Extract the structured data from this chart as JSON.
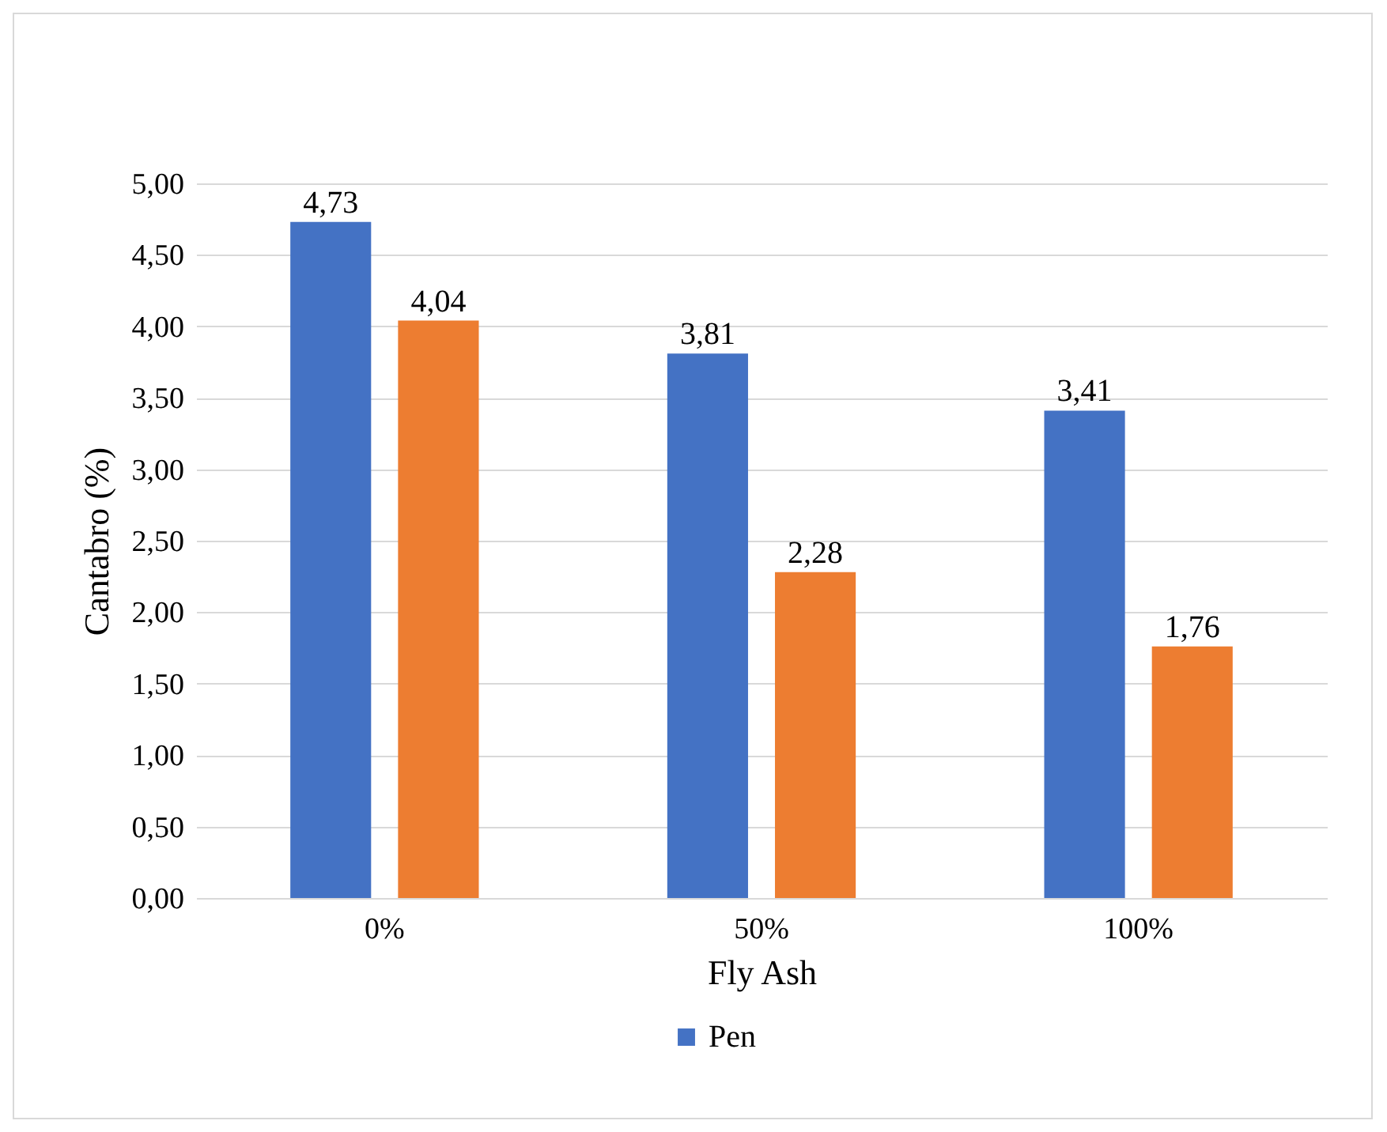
{
  "chart_data": {
    "type": "bar",
    "xlabel": "Fly Ash",
    "ylabel": "Cantabro (%)",
    "categories": [
      "0%",
      "50%",
      "100%"
    ],
    "series": [
      {
        "name": "Pen",
        "color": "#4472c4",
        "values": [
          4.73,
          3.81,
          3.41
        ],
        "value_labels": [
          "4,73",
          "3,81",
          "3,41"
        ]
      },
      {
        "color": "#ed7d31",
        "values": [
          4.04,
          2.28,
          1.76
        ],
        "value_labels": [
          "4,04",
          "2,28",
          "1,76"
        ]
      }
    ],
    "ylim": [
      0,
      5
    ],
    "yticks": [
      {
        "value": 0,
        "label": "0,00"
      },
      {
        "value": 0.5,
        "label": "0,50"
      },
      {
        "value": 1,
        "label": "1,00"
      },
      {
        "value": 1.5,
        "label": "1,50"
      },
      {
        "value": 2,
        "label": "2,00"
      },
      {
        "value": 2.5,
        "label": "2,50"
      },
      {
        "value": 3,
        "label": "3,00"
      },
      {
        "value": 3.5,
        "label": "3,50"
      },
      {
        "value": 4,
        "label": "4,00"
      },
      {
        "value": 4.5,
        "label": "4,50"
      },
      {
        "value": 5,
        "label": "5,00"
      }
    ],
    "grid": "y",
    "legend": "bottom"
  }
}
